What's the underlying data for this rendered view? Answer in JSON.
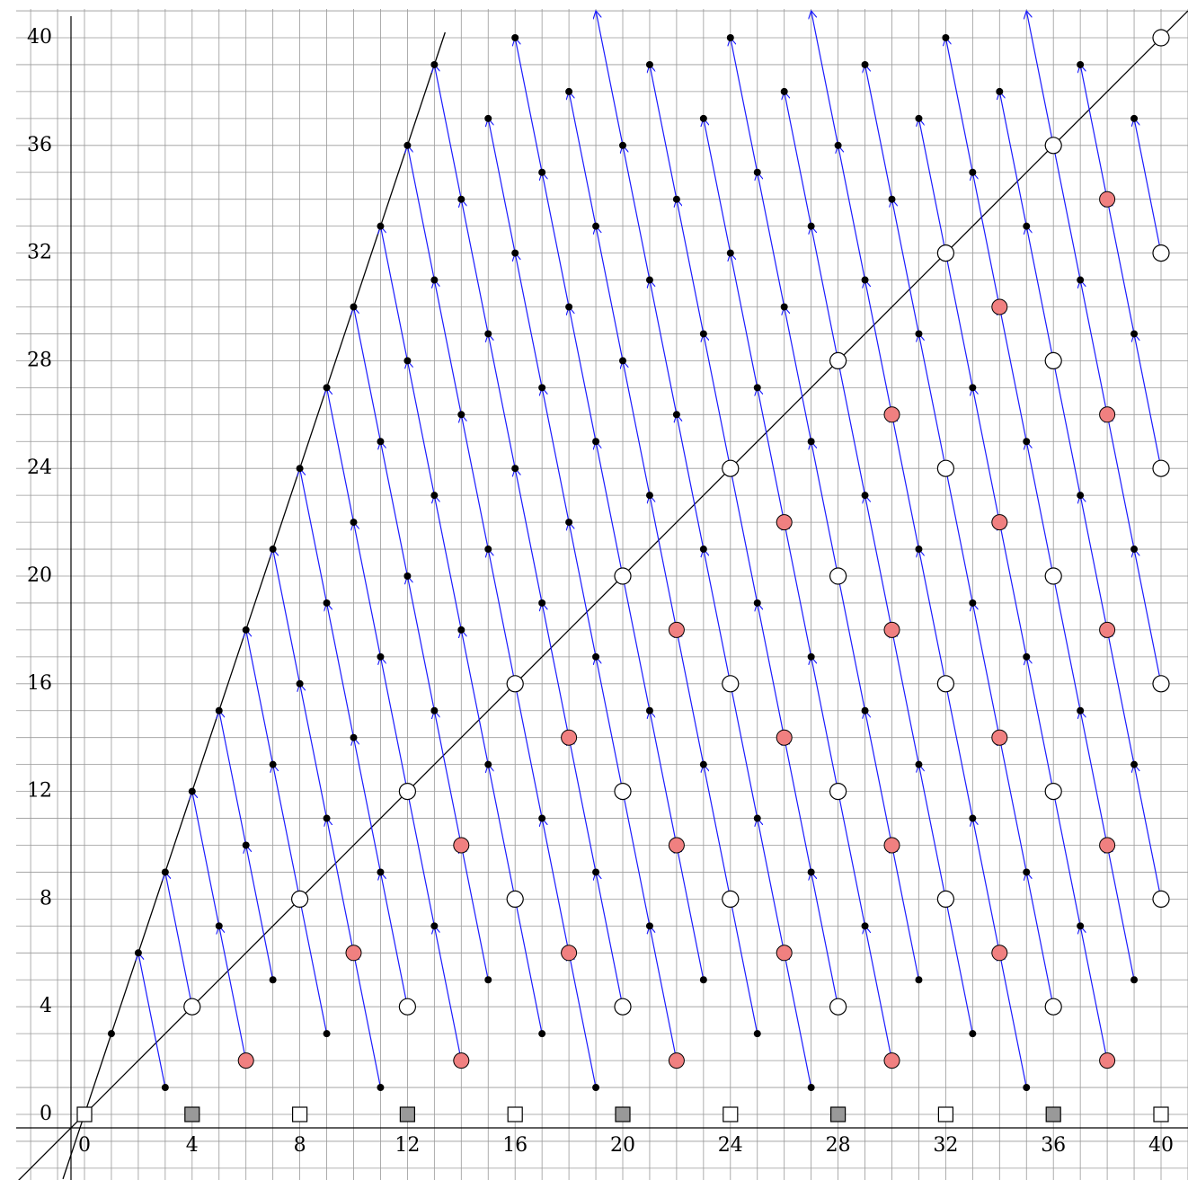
{
  "diagram": {
    "x_labels": [
      0,
      4,
      8,
      12,
      16,
      20,
      24,
      28,
      32,
      36,
      40
    ],
    "y_labels": [
      0,
      4,
      8,
      12,
      16,
      20,
      24,
      28,
      32,
      36,
      40
    ]
  }
}
